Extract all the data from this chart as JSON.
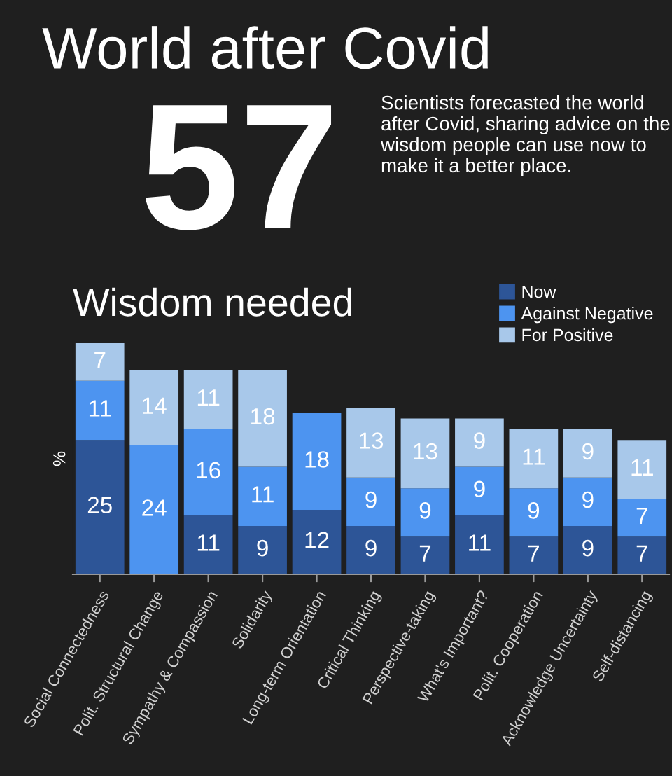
{
  "chart_data": {
    "type": "bar",
    "stacked": true,
    "title": "World after Covid",
    "subtitle": "Wisdom needed",
    "ylabel": "%",
    "annotations": [
      "57",
      "Scientists forecasted the world after Covid, sharing advice on the wisdom people can use now to make it a better place."
    ],
    "categories": [
      "Social Connectedness",
      "Polit. Structural Change",
      "Sympathy & Compassion",
      "Solidarity",
      "Long-term Orientation",
      "Critical Thinking",
      "Perspective-taking",
      "What's Important?",
      "Polit. Cooperation",
      "Acknowledge Uncertainty",
      "Self-distancing"
    ],
    "series": [
      {
        "name": "Now",
        "color": "#2d5597",
        "values": [
          25,
          0,
          11,
          9,
          12,
          9,
          7,
          11,
          7,
          9,
          7
        ],
        "value_labels": [
          "25",
          null,
          "11",
          "9",
          "12",
          "9",
          "7",
          "11",
          "7",
          "9",
          "7"
        ]
      },
      {
        "name": "Against Negative",
        "color": "#4d94f0",
        "values": [
          11,
          24,
          16,
          11,
          18,
          9,
          9,
          9,
          9,
          9,
          7
        ],
        "value_labels": [
          "11",
          "24",
          "16",
          "11",
          "18",
          "9",
          "9",
          "9",
          "9",
          "9",
          "7"
        ]
      },
      {
        "name": "For Positive",
        "color": "#a8c8ea",
        "values": [
          7,
          14,
          11,
          18,
          0,
          13,
          13,
          9,
          11,
          9,
          11
        ],
        "value_labels": [
          "7",
          "14",
          "11",
          "18",
          null,
          "13",
          "13",
          "9",
          "11",
          "9",
          "11"
        ]
      }
    ],
    "legend": "top right",
    "grid": false
  }
}
